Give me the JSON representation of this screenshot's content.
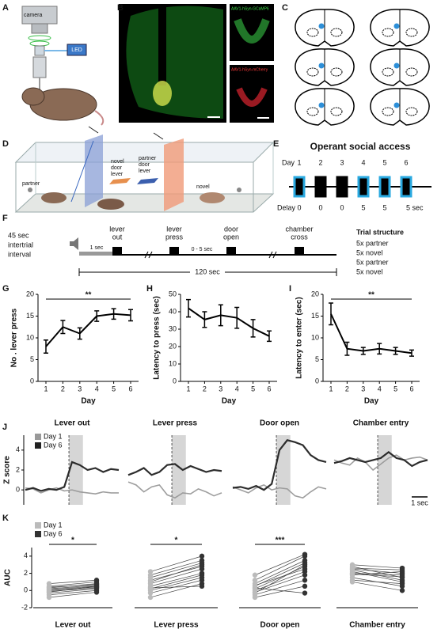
{
  "panel_labels": [
    "A",
    "B",
    "C",
    "D",
    "E",
    "F",
    "G",
    "H",
    "I",
    "J",
    "K"
  ],
  "panel_a": {
    "camera": "camera",
    "led": "LED"
  },
  "panel_b": {
    "green_label": "AAV1-hSyn-GCaMP6",
    "red_label": "AAV1-hSyn-mCherry"
  },
  "panel_d": {
    "left_animal": "partner",
    "right_animal": "novel",
    "novel_lever": [
      "novel",
      "door",
      "lever"
    ],
    "partner_lever": [
      "partner",
      "door",
      "lever"
    ]
  },
  "panel_e": {
    "title": "Operant social access",
    "day_label": "Day",
    "days": [
      1,
      2,
      3,
      4,
      5,
      6
    ],
    "delay_label": "Delay",
    "delays": [
      0,
      0,
      0,
      5,
      5,
      "5 sec"
    ]
  },
  "panel_f": {
    "iti": [
      "45 sec",
      "intertrial",
      "interval"
    ],
    "cue": "1 sec",
    "events": [
      [
        "lever",
        "out"
      ],
      [
        "lever",
        "press"
      ],
      [
        "door",
        "open"
      ],
      [
        "chamber",
        "cross"
      ]
    ],
    "delay": "0 - 5 sec",
    "total": "120 sec",
    "structure_title": "Trial structure",
    "structure": [
      "5x partner",
      "5x novel",
      "5x partner",
      "5x novel"
    ]
  },
  "chart_data": [
    {
      "type": "line",
      "ylabel": "No . lever press",
      "xlabel": "Day",
      "categories": [
        "1",
        "2",
        "3",
        "4",
        "5",
        "6"
      ],
      "values": [
        8,
        12.5,
        11,
        15,
        15.5,
        15.2
      ],
      "errors": [
        1.5,
        1.5,
        1.3,
        1.2,
        1.2,
        1.3
      ],
      "color": "#000000",
      "ylim": [
        0,
        20
      ],
      "yticks": [
        0,
        5,
        10,
        15,
        20
      ],
      "significance": "**"
    },
    {
      "type": "line",
      "ylabel": "Latency to press (sec)",
      "xlabel": "Day",
      "categories": [
        "1",
        "2",
        "3",
        "4",
        "5",
        "6"
      ],
      "values": [
        42,
        35.5,
        38,
        36.5,
        30.5,
        26
      ],
      "errors": [
        5,
        4.5,
        6,
        6,
        5,
        3
      ],
      "color": "#000000",
      "ylim": [
        0,
        50
      ],
      "yticks": [
        0,
        10,
        20,
        30,
        40,
        50
      ]
    },
    {
      "type": "line",
      "ylabel": "Latency to enter (sec)",
      "xlabel": "Day",
      "categories": [
        "1",
        "2",
        "3",
        "4",
        "5",
        "6"
      ],
      "values": [
        15.5,
        7.5,
        7,
        7.5,
        7,
        6.5
      ],
      "errors": [
        2.5,
        1.5,
        0.8,
        1.2,
        0.8,
        0.7
      ],
      "color": "#000000",
      "ylim": [
        0,
        20
      ],
      "yticks": [
        0,
        5,
        10,
        15,
        20
      ],
      "significance": "**"
    },
    {
      "type": "line",
      "ylabel": "Z score",
      "ylim": [
        -1.5,
        5.5
      ],
      "yticks": [
        0,
        2,
        4
      ],
      "scale_label": "1 sec",
      "series": [
        {
          "name": "Day 1",
          "color": "#999999"
        },
        {
          "name": "Day 6",
          "color": "#222222"
        }
      ],
      "panels": [
        {
          "title": "Lever out",
          "values": [
            [
              0.2,
              0.1,
              -0.3,
              0.0,
              0.2,
              -0.1,
              0.0,
              -0.2,
              -0.3,
              -0.4,
              -0.2,
              -0.3,
              -0.3
            ],
            [
              0.0,
              0.2,
              -0.1,
              0.1,
              0.0,
              0.3,
              2.8,
              2.5,
              2.0,
              2.2,
              1.8,
              2.1,
              2.0
            ]
          ]
        },
        {
          "title": "Lever press",
          "values": [
            [
              0.8,
              0.5,
              -0.2,
              0.3,
              0.5,
              -0.5,
              -0.8,
              -0.3,
              -0.4,
              0.1,
              -0.2,
              -0.6,
              -0.3
            ],
            [
              1.5,
              1.8,
              2.2,
              1.5,
              1.8,
              2.5,
              2.6,
              2.0,
              2.4,
              2.1,
              1.8,
              2.0,
              1.9
            ]
          ]
        },
        {
          "title": "Door open",
          "values": [
            [
              0.3,
              0.0,
              -0.3,
              0.2,
              0.5,
              0.0,
              0.2,
              0.1,
              -0.6,
              -0.8,
              -0.2,
              0.3,
              0.1
            ],
            [
              0.2,
              0.3,
              0.1,
              0.4,
              0.0,
              0.6,
              4.0,
              5.0,
              4.8,
              4.5,
              3.5,
              3.0,
              2.8
            ]
          ]
        },
        {
          "title": "Chamber entry",
          "values": [
            [
              3.0,
              2.7,
              2.5,
              3.2,
              2.8,
              2.0,
              2.6,
              3.2,
              3.5,
              3.0,
              3.2,
              3.3,
              3.0
            ],
            [
              2.7,
              2.9,
              3.2,
              3.0,
              2.8,
              3.0,
              3.2,
              3.8,
              3.2,
              3.0,
              2.4,
              2.8,
              3.0
            ]
          ]
        }
      ]
    },
    {
      "type": "dot",
      "ylabel": "AUC",
      "ylim": [
        -2,
        5
      ],
      "yticks": [
        -2,
        0,
        2,
        4
      ],
      "series": [
        {
          "name": "Day 1",
          "color": "#bbbbbb"
        },
        {
          "name": "Day 6",
          "color": "#333333"
        }
      ],
      "panels": [
        {
          "title": "Lever out",
          "significance": "*",
          "values": [
            [
              0.8,
              0.5,
              0.3,
              0.2,
              0.1,
              0,
              -0.1,
              -0.3,
              -0.5,
              -0.8,
              0.4,
              -0.2
            ],
            [
              1.2,
              1.0,
              0.8,
              0.6,
              0.5,
              0.4,
              0.3,
              0.2,
              0.0,
              -0.2,
              0.7,
              0.5
            ]
          ]
        },
        {
          "title": "Lever press",
          "significance": "*",
          "values": [
            [
              2.2,
              1.8,
              1.5,
              1.2,
              0.8,
              0.5,
              0.2,
              0,
              -0.3,
              -0.8,
              1.0,
              0.3
            ],
            [
              4.0,
              3.5,
              3.2,
              2.8,
              2.5,
              2.0,
              1.8,
              1.5,
              1.2,
              0.8,
              3.0,
              0.5
            ]
          ]
        },
        {
          "title": "Door open",
          "significance": "***",
          "values": [
            [
              1.8,
              1.2,
              0.8,
              0.5,
              0.2,
              0,
              -0.2,
              -0.5,
              -0.8,
              0.3,
              0.6,
              -0.3
            ],
            [
              4.2,
              4.0,
              3.5,
              3.2,
              2.8,
              2.2,
              1.8,
              1.2,
              0.5,
              -0.3,
              2.5,
              3.0
            ]
          ]
        },
        {
          "title": "Chamber entry",
          "values": [
            [
              3.0,
              2.8,
              2.5,
              2.2,
              2.0,
              1.8,
              1.5,
              1.2,
              1.0,
              2.4,
              1.9,
              2.6
            ],
            [
              2.6,
              1.5,
              2.0,
              1.0,
              1.8,
              2.2,
              0.5,
              0.8,
              0.0,
              1.2,
              1.6,
              2.4
            ]
          ]
        }
      ]
    }
  ]
}
